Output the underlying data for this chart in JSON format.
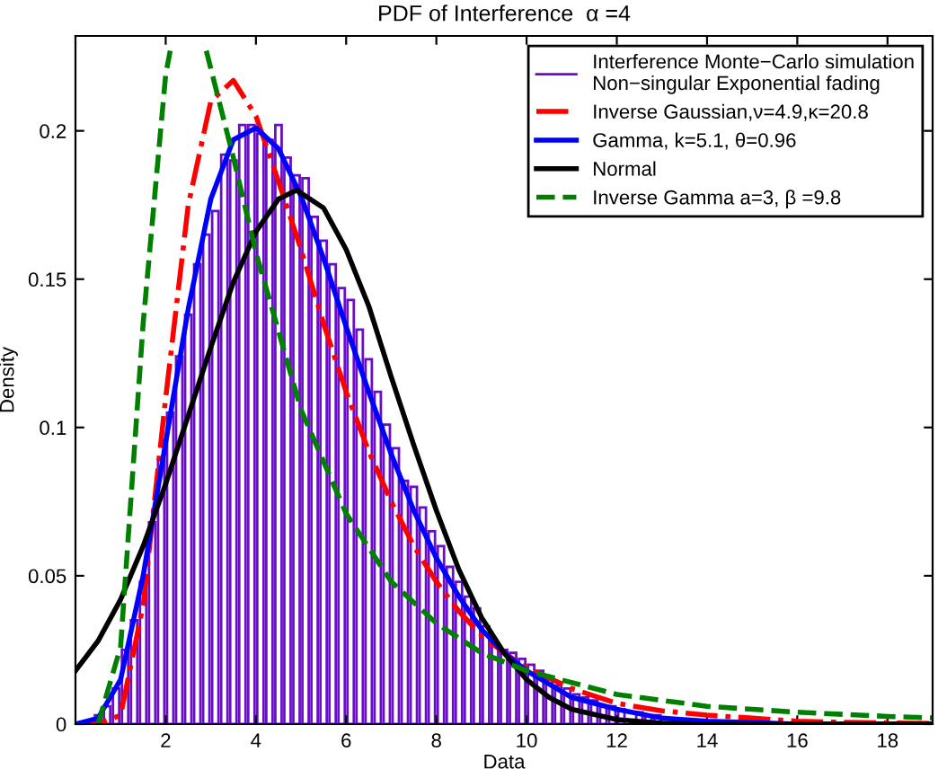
{
  "chart_data": {
    "type": "histogram",
    "title": "PDF of Interference  α =4",
    "xlabel": "Data",
    "ylabel": "Density",
    "xlim": [
      0,
      19
    ],
    "ylim": [
      0,
      0.232
    ],
    "xticks": [
      2,
      4,
      6,
      8,
      10,
      12,
      14,
      16,
      18
    ],
    "yticks": [
      0,
      0.05,
      0.1,
      0.15,
      0.2
    ],
    "grid": false,
    "legend": "top right",
    "series": [
      {
        "name": "Interference Monte−Carlo simulation\nNon−singular Exponential fading",
        "color": "#6a0dc8",
        "bins": [
          0,
          0.2,
          0.4,
          0.6,
          0.8,
          1,
          1.2,
          1.4,
          1.6,
          1.8,
          2,
          2.2,
          2.4,
          2.6,
          2.8,
          3,
          3.2,
          3.4,
          3.6,
          3.8,
          4,
          4.2,
          4.4,
          4.6,
          4.8,
          5,
          5.2,
          5.4,
          5.6,
          5.8,
          6,
          6.2,
          6.4,
          6.6,
          6.8,
          7,
          7.2,
          7.4,
          7.6,
          7.8,
          8,
          8.2,
          8.4,
          8.6,
          8.8,
          9,
          9.2,
          9.4,
          9.6,
          9.8,
          10,
          10.2,
          10.4,
          10.6,
          10.8,
          11,
          11.2,
          11.4,
          11.6,
          11.8,
          12,
          12.2,
          12.4,
          12.6,
          12.8,
          13,
          13.2,
          13.4,
          13.6,
          13.8,
          14,
          14.2,
          14.4,
          14.6,
          14.8,
          15,
          15.2,
          15.4,
          15.6,
          15.8,
          16,
          16.2,
          16.4,
          16.6,
          16.8,
          17,
          17.2,
          17.4,
          17.6,
          17.8,
          18,
          18.2,
          18.4,
          18.6,
          18.8,
          19
        ],
        "values": [
          0,
          null,
          0.003,
          0.006,
          0.012,
          0.025,
          0.035,
          0.048,
          0.068,
          0.089,
          0.105,
          0.124,
          0.138,
          0.155,
          0.165,
          0.173,
          0.192,
          0.19,
          0.202,
          0.202,
          0.199,
          0.197,
          0.202,
          0.191,
          0.185,
          0.184,
          0.171,
          0.163,
          0.155,
          0.147,
          0.143,
          0.133,
          0.123,
          0.112,
          0.101,
          0.093,
          0.082,
          0.08,
          0.073,
          0.065,
          0.06,
          0.053,
          0.048,
          0.043,
          0.039,
          0.033,
          0.027,
          0.025,
          0.024,
          0.022,
          0.02,
          0.018,
          0.015,
          0.013,
          0.012,
          0.01,
          0.009,
          0.008,
          0.006,
          0.006,
          0.005,
          null,
          0.004,
          0.003,
          0.003,
          null,
          null,
          null,
          null,
          null,
          null,
          null,
          null,
          0,
          0,
          0,
          0,
          0,
          0,
          0,
          0,
          0,
          0,
          0,
          0,
          0,
          0,
          0,
          0,
          0,
          0,
          0,
          0,
          0,
          0
        ]
      },
      {
        "type": "line",
        "name": "Inverse Gaussian,ν=4.9,κ=20.8",
        "color": "#ff0000",
        "line_style": "dashdot",
        "x": [
          0,
          0.5,
          1,
          1.5,
          2,
          2.5,
          3,
          3.5,
          4,
          4.5,
          5,
          5.5,
          6,
          6.5,
          7,
          7.5,
          8,
          8.5,
          9,
          9.5,
          10,
          11,
          12,
          13,
          14,
          15,
          16,
          17,
          19
        ],
        "values": [
          0,
          0,
          0.003,
          0.04,
          0.11,
          0.175,
          0.21,
          0.217,
          0.205,
          0.183,
          0.16,
          0.135,
          0.112,
          0.092,
          0.075,
          0.06,
          0.048,
          0.038,
          0.03,
          0.024,
          0.019,
          0.012,
          0.007,
          0.0045,
          0.003,
          0.002,
          0.001,
          0.0006,
          0.0002
        ]
      },
      {
        "type": "line",
        "name": "Gamma, k=5.1, θ=0.96",
        "color": "#0000ff",
        "line_style": "solid",
        "x": [
          0,
          0.5,
          1,
          1.5,
          2,
          2.5,
          3,
          3.5,
          4,
          4.5,
          5,
          5.5,
          6,
          6.5,
          7,
          7.5,
          8,
          8.5,
          9,
          9.5,
          10,
          11,
          12,
          13,
          14,
          15,
          16,
          19
        ],
        "values": [
          0,
          0.002,
          0.015,
          0.05,
          0.095,
          0.14,
          0.177,
          0.197,
          0.201,
          0.194,
          0.178,
          0.157,
          0.134,
          0.112,
          0.091,
          0.072,
          0.056,
          0.043,
          0.032,
          0.024,
          0.018,
          0.009,
          0.005,
          0.002,
          0.001,
          0.0005,
          0,
          0
        ]
      },
      {
        "type": "line",
        "name": "Normal",
        "color": "#000000",
        "line_style": "solid",
        "x": [
          0,
          0.5,
          1,
          1.5,
          2,
          2.5,
          3,
          3.5,
          4,
          4.5,
          4.9,
          5.5,
          6,
          6.5,
          7,
          7.5,
          8,
          8.5,
          9,
          9.5,
          10,
          10.5,
          11,
          12,
          13,
          14,
          19
        ],
        "values": [
          0.018,
          0.028,
          0.042,
          0.06,
          0.081,
          0.104,
          0.127,
          0.149,
          0.166,
          0.177,
          0.18,
          0.174,
          0.16,
          0.141,
          0.117,
          0.094,
          0.072,
          0.052,
          0.036,
          0.024,
          0.015,
          0.009,
          0.005,
          0.0015,
          0.0003,
          0,
          0
        ]
      },
      {
        "type": "line",
        "name": "Inverse Gamma a=3, β =9.8",
        "color": "#008000",
        "line_style": "dashed",
        "x": [
          0.5,
          1,
          1.5,
          2,
          2.1,
          2.5,
          2.9,
          3.5,
          4,
          5,
          6,
          7,
          8,
          9,
          10,
          12,
          14,
          16,
          18,
          19
        ],
        "values": [
          0,
          0.026,
          0.135,
          0.219,
          0.227,
          null,
          0.227,
          0.191,
          0.159,
          0.106,
          0.071,
          0.048,
          0.034,
          0.024,
          0.018,
          0.01,
          0.006,
          0.004,
          0.0026,
          0.0021
        ]
      }
    ]
  }
}
